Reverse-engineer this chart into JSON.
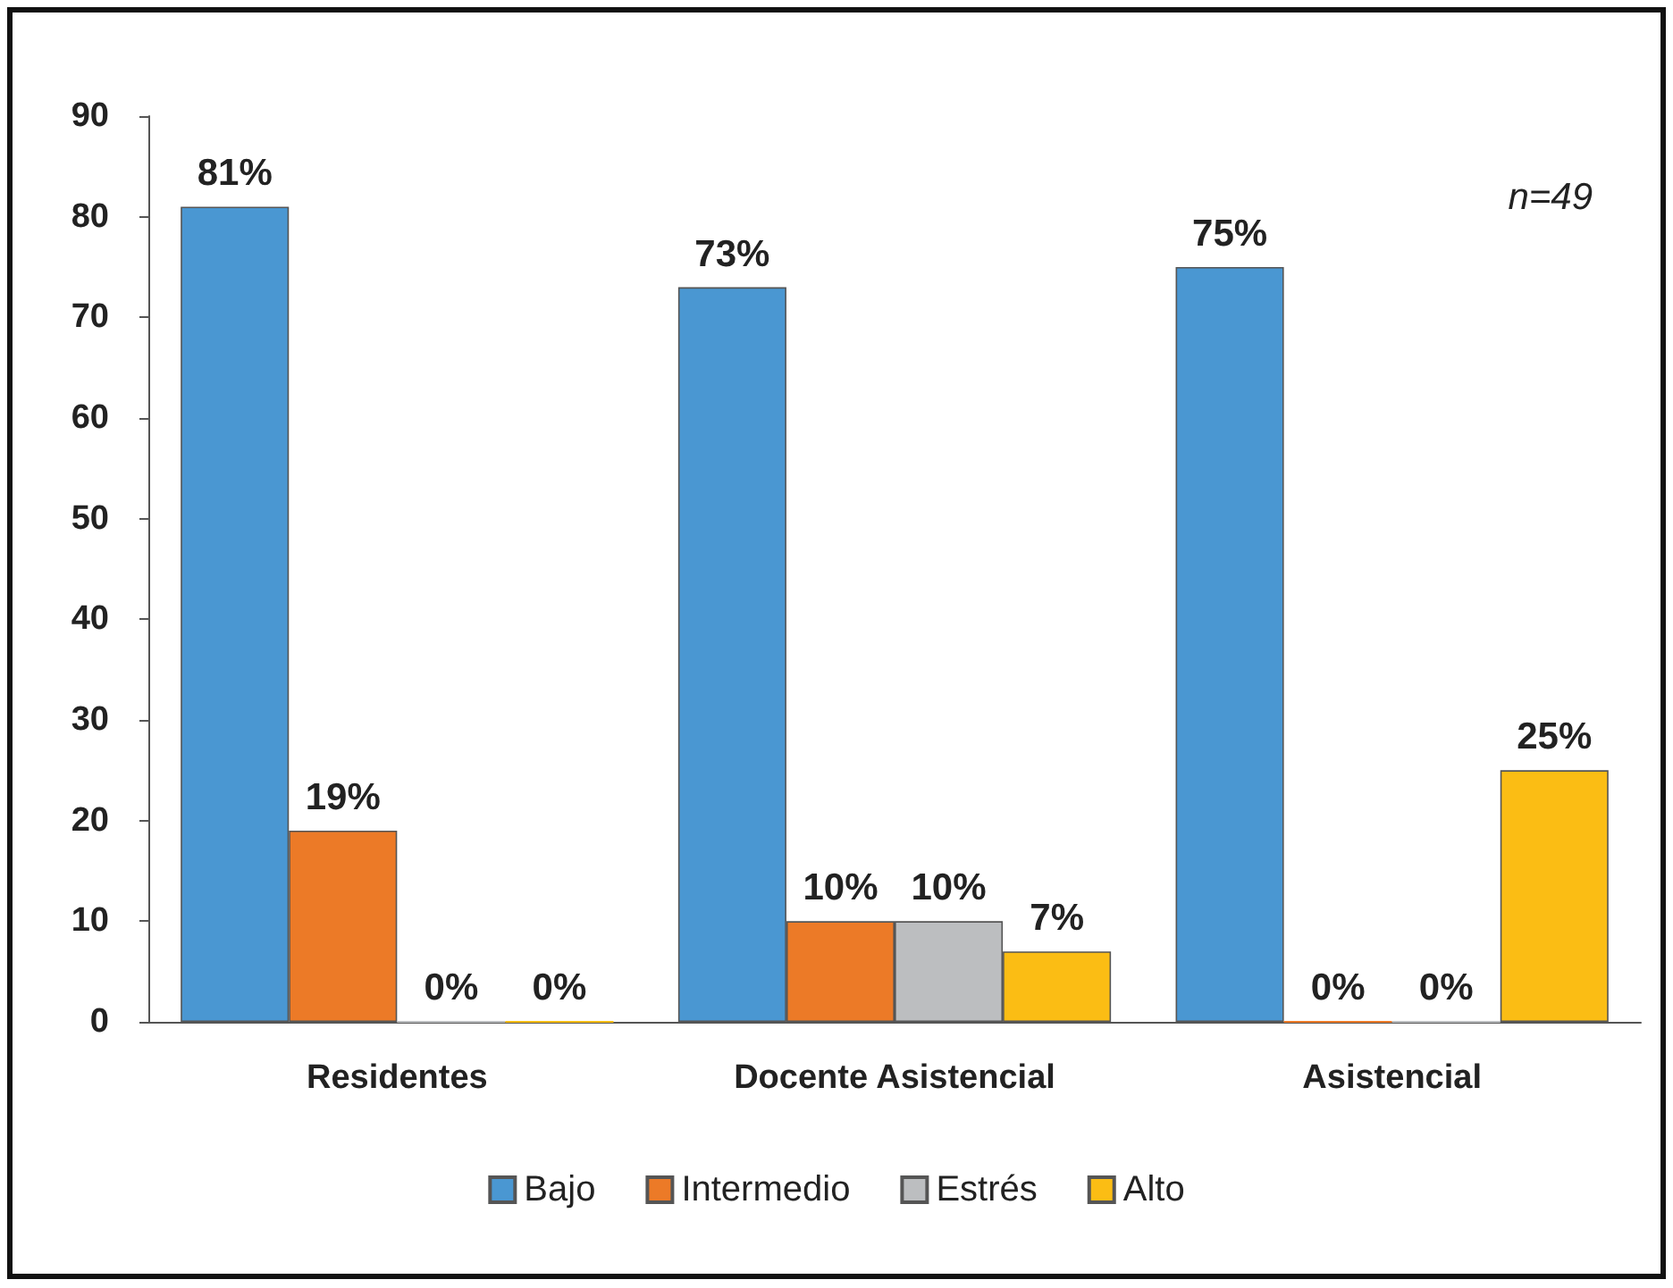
{
  "chart_data": {
    "type": "bar",
    "categories": [
      "Residentes",
      "Docente Asistencial",
      "Asistencial"
    ],
    "series": [
      {
        "name": "Bajo",
        "color": "#4a97d2",
        "values": [
          81,
          73,
          75
        ],
        "value_labels": [
          "81%",
          "73%",
          "75%"
        ]
      },
      {
        "name": "Intermedio",
        "color": "#ec7a27",
        "values": [
          19,
          10,
          0
        ],
        "value_labels": [
          "19%",
          "10%",
          "0%"
        ]
      },
      {
        "name": "Estrés",
        "color": "#bcbec0",
        "values": [
          0,
          10,
          0
        ],
        "value_labels": [
          "0%",
          "10%",
          "0%"
        ]
      },
      {
        "name": "Alto",
        "color": "#fbbd14",
        "values": [
          0,
          7,
          25
        ],
        "value_labels": [
          "0%",
          "7%",
          "25%"
        ]
      }
    ],
    "ylim": [
      0,
      90
    ],
    "yticks": [
      0,
      10,
      20,
      30,
      40,
      50,
      60,
      70,
      80,
      90
    ],
    "grid": false,
    "legend": "bottom",
    "annotations": [
      "n=49"
    ]
  }
}
